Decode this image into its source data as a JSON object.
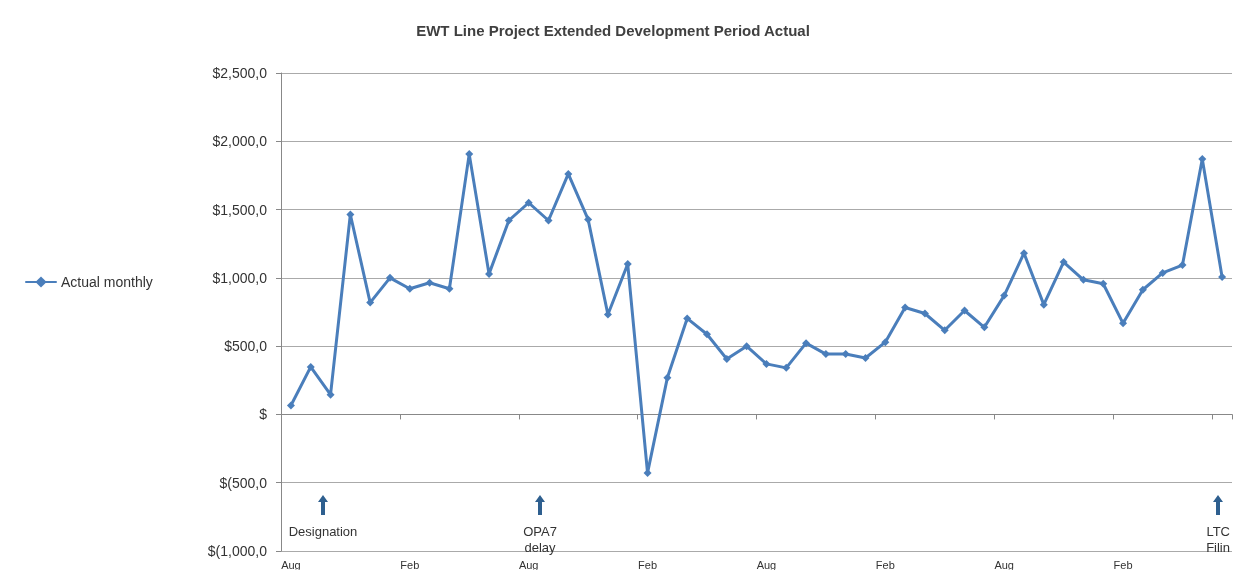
{
  "chart_data": {
    "type": "line",
    "title": "EWT Line Project Extended Development Period Actual",
    "categories": [
      "Aug",
      null,
      null,
      null,
      null,
      null,
      "Feb",
      null,
      null,
      null,
      null,
      null,
      "Aug",
      null,
      null,
      null,
      null,
      null,
      "Feb",
      null,
      null,
      null,
      null,
      null,
      "Aug",
      null,
      null,
      null,
      null,
      null,
      "Feb",
      null,
      null,
      null,
      null,
      null,
      "Aug",
      null,
      null,
      null,
      null,
      null,
      "Feb",
      null,
      null,
      null,
      null,
      null
    ],
    "series": [
      {
        "name": "Actual monthly",
        "color": "#4a7ebb",
        "values": [
          65,
          348,
          145,
          1464,
          819,
          1000,
          920,
          964,
          920,
          1906,
          1029,
          1420,
          1550,
          1420,
          1761,
          1428,
          732,
          1101,
          -428,
          268,
          703,
          587,
          406,
          500,
          370,
          341,
          522,
          442,
          442,
          413,
          529,
          783,
          739,
          616,
          761,
          638,
          870,
          1181,
          804,
          1116,
          986,
          957,
          667,
          913,
          1036,
          1094,
          1870,
          1007
        ]
      }
    ],
    "ylim": [
      -1000,
      2500
    ],
    "yticks": [
      {
        "value": -1000,
        "label": "$(1,000,0"
      },
      {
        "value": -500,
        "label": "$(500,0"
      },
      {
        "value": 0,
        "label": "$"
      },
      {
        "value": 500,
        "label": "$500,0"
      },
      {
        "value": 1000,
        "label": "$1,000,0"
      },
      {
        "value": 1500,
        "label": "$1,500,0"
      },
      {
        "value": 2000,
        "label": "$2,000,0"
      },
      {
        "value": 2500,
        "label": "$2,500,0"
      }
    ],
    "grid": "y",
    "legend": "left",
    "marker": "diamond",
    "line_style": "solid",
    "annotations": [
      "Designation",
      "OPA7\ndelay",
      "LTC\nFilin"
    ]
  }
}
